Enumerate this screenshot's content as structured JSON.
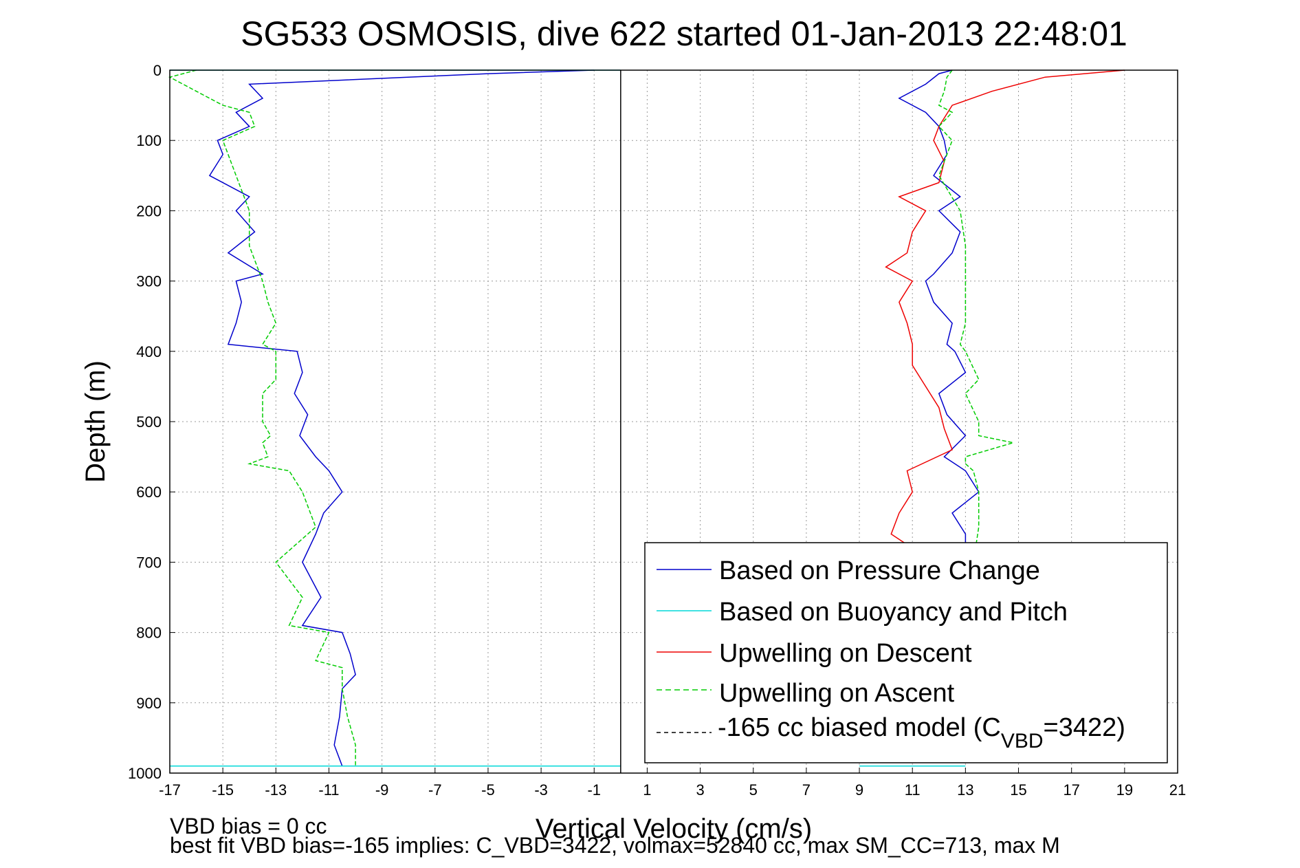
{
  "chart_data": {
    "type": "line",
    "title": "SG533 OSMOSIS, dive 622 started 01-Jan-2013 22:48:01",
    "xlabel": "Vertical Velocity (cm/s)",
    "ylabel": "Depth (m)",
    "xlim": [
      -17,
      21
    ],
    "ylim": [
      1000,
      0
    ],
    "y_reversed": true,
    "grid": true,
    "legend_position": "bottom-right",
    "x_ticks": [
      "-17",
      "-15",
      "-13",
      "-11",
      "-9",
      "-7",
      "-5",
      "-3",
      "-1",
      "1",
      "3",
      "5",
      "7",
      "9",
      "11",
      "13",
      "15",
      "17",
      "19",
      "21"
    ],
    "y_ticks": [
      "0",
      "100",
      "200",
      "300",
      "400",
      "500",
      "600",
      "700",
      "800",
      "900",
      "1000"
    ],
    "legend": [
      {
        "label": "Based on Pressure Change",
        "color": "#0000cc",
        "style": "solid"
      },
      {
        "label": "Based on Buoyancy and Pitch",
        "color": "#00d8d8",
        "style": "solid"
      },
      {
        "label": "Upwelling on Descent",
        "color": "#ee0000",
        "style": "solid"
      },
      {
        "label": "Upwelling on Ascent",
        "color": "#00cc00",
        "style": "dashed"
      },
      {
        "label_prefix": "-165 cc biased model (C",
        "label_sub": "VBD",
        "label_suffix": "=3422)",
        "color": "#000000",
        "style": "dashed"
      }
    ],
    "series": [
      {
        "name": "Based on Pressure Change",
        "color": "#0000cc",
        "depth": [
          0,
          5,
          20,
          40,
          60,
          80,
          100,
          120,
          150,
          180,
          200,
          230,
          260,
          290,
          300,
          330,
          360,
          390,
          400,
          430,
          460,
          490,
          520,
          550,
          570,
          600,
          630,
          660,
          700,
          750,
          790,
          800,
          830,
          860,
          880,
          920,
          960,
          990
        ],
        "descent": [
          -1,
          -5,
          -14,
          -13.5,
          -14.5,
          -14,
          -15.2,
          -15,
          -15.5,
          -14,
          -14.5,
          -13.8,
          -14.8,
          -13.5,
          -14.5,
          -14.3,
          -14.5,
          -14.8,
          -12.2,
          -12,
          -12.3,
          -11.8,
          -12.1,
          -11.5,
          -11,
          -10.5,
          -11.2,
          -11.5,
          -12,
          -11.3,
          -12,
          -10.5,
          -10.2,
          -10,
          -10.5,
          -10.6,
          -10.8,
          -10.5
        ],
        "ascent": [
          12.5,
          12,
          11.5,
          10.5,
          11.5,
          12,
          12.2,
          12.3,
          11.8,
          12.8,
          12,
          12.8,
          12.5,
          11.8,
          11.5,
          11.8,
          12.5,
          12.3,
          12.6,
          13,
          12,
          12.3,
          13,
          12.2,
          13,
          13.5,
          12.5,
          13,
          13
        ]
      },
      {
        "name": "Upwelling on Descent",
        "color": "#ee0000",
        "depth": [
          0,
          10,
          30,
          50,
          80,
          100,
          130,
          160,
          180,
          200,
          230,
          260,
          280,
          300,
          330,
          360,
          390,
          420,
          450,
          480,
          510,
          540,
          570,
          600,
          630,
          660,
          675
        ],
        "values": [
          19,
          16,
          14,
          12.5,
          12,
          11.8,
          12.2,
          12,
          10.5,
          11.5,
          11,
          10.8,
          10,
          11,
          10.5,
          10.8,
          11,
          11,
          11.5,
          12,
          12.2,
          12.5,
          10.8,
          11,
          10.5,
          10.2,
          10.8
        ]
      },
      {
        "name": "Upwelling on Ascent",
        "color": "#00cc00",
        "depth": [
          0,
          10,
          30,
          50,
          60,
          80,
          100,
          150,
          200,
          250,
          300,
          330,
          360,
          390,
          400,
          440,
          460,
          500,
          520,
          530,
          550,
          560,
          570,
          600,
          650,
          700,
          750,
          790,
          800,
          840,
          850,
          880,
          920,
          960,
          990
        ],
        "descent": [
          -16,
          -17,
          -16,
          -15,
          -14,
          -13.8,
          -15,
          -14.5,
          -14,
          -14,
          -13.5,
          -13.3,
          -13,
          -13.5,
          -13,
          -13,
          -13.5,
          -13.5,
          -13.2,
          -13.5,
          -13.3,
          -14,
          -12.5,
          -12,
          -11.5,
          -13,
          -12,
          -12.5,
          -11,
          -11.5,
          -10.5,
          -10.5,
          -10.3,
          -10,
          -10
        ],
        "ascent": [
          12.5,
          12.3,
          12.2,
          12,
          12.5,
          12,
          12.5,
          12,
          12.8,
          13,
          13,
          13,
          13,
          12.8,
          13,
          13.5,
          13,
          13.5,
          13.5,
          14.8,
          13,
          13,
          13.3,
          13.5,
          13.5,
          13.3,
          13
        ]
      },
      {
        "name": "Based on Buoyancy and Pitch",
        "color": "#00d8d8",
        "segments": [
          {
            "depth": [
              0,
              0
            ],
            "x": [
              -17,
              0
            ]
          },
          {
            "depth": [
              990,
              990
            ],
            "x": [
              -17,
              0
            ]
          },
          {
            "depth": [
              990,
              990
            ],
            "x": [
              9,
              13
            ]
          }
        ]
      }
    ]
  },
  "footer": {
    "line1": "VBD bias = 0 cc",
    "line2": "best fit VBD bias=-165 implies: C_VBD=3422, volmax=52840 cc, max SM_CC=713, max M"
  }
}
